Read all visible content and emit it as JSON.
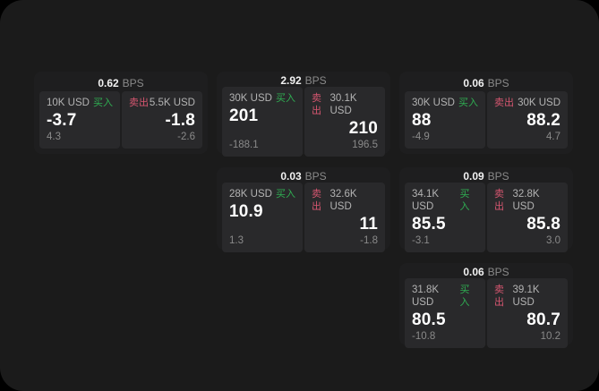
{
  "labels": {
    "bps": "BPS",
    "buy": "买入",
    "sell": "卖出"
  },
  "colors": {
    "background": "#000000",
    "surface": "#1b1b1b",
    "card": "#1e1e1f",
    "tile": "#29292b",
    "buy_green": "#2fae52",
    "sell_red": "#d65670",
    "text_primary": "#ffffff",
    "text_secondary": "#b3b3b3",
    "text_muted": "#8a8a8a"
  },
  "cards": [
    {
      "bps": "0.62",
      "buy": {
        "amount": "10K USD",
        "main": "-3.7",
        "sub": "4.3"
      },
      "sell": {
        "amount": "5.5K USD",
        "main": "-1.8",
        "sub": "-2.6"
      }
    },
    {
      "bps": "2.92",
      "buy": {
        "amount": "30K USD",
        "main": "201",
        "sub": "-188.1"
      },
      "sell": {
        "amount": "30.1K USD",
        "main": "210",
        "sub": "196.5"
      }
    },
    {
      "bps": "0.06",
      "buy": {
        "amount": "30K USD",
        "main": "88",
        "sub": "-4.9"
      },
      "sell": {
        "amount": "30K USD",
        "main": "88.2",
        "sub": "4.7"
      }
    },
    {
      "bps": "0.03",
      "buy": {
        "amount": "28K USD",
        "main": "10.9",
        "sub": "1.3"
      },
      "sell": {
        "amount": "32.6K USD",
        "main": "11",
        "sub": "-1.8"
      }
    },
    {
      "bps": "0.09",
      "buy": {
        "amount": "34.1K USD",
        "main": "85.5",
        "sub": "-3.1"
      },
      "sell": {
        "amount": "32.8K USD",
        "main": "85.8",
        "sub": "3.0"
      }
    },
    {
      "bps": "0.06",
      "buy": {
        "amount": "31.8K USD",
        "main": "80.5",
        "sub": "-10.8"
      },
      "sell": {
        "amount": "39.1K USD",
        "main": "80.7",
        "sub": "10.2"
      }
    }
  ]
}
